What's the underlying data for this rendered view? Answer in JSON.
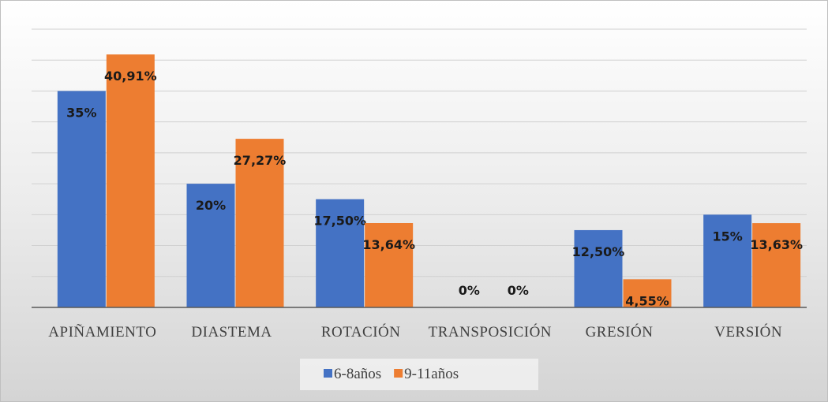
{
  "chart_data": {
    "type": "bar",
    "categories": [
      "APIÑAMIENTO",
      "DIASTEMA",
      "ROTACIÓN",
      "TRANSPOSICIÓN",
      "GRESIÓN",
      "VERSIÓN"
    ],
    "series": [
      {
        "name": "6-8años",
        "color": "#4472c4",
        "values": [
          35,
          20,
          17.5,
          0,
          12.5,
          15
        ],
        "value_labels": [
          "35%",
          "20%",
          "17,50%",
          "0%",
          "12,50%",
          "15%"
        ]
      },
      {
        "name": "9-11años",
        "color": "#ed7d31",
        "values": [
          40.91,
          27.27,
          13.64,
          0,
          4.55,
          13.63
        ],
        "value_labels": [
          "40,91%",
          "27,27%",
          "13,64%",
          "0%",
          "4,55%",
          "13,63%"
        ]
      }
    ],
    "ylim": [
      0,
      45
    ],
    "yticks": [
      0,
      5,
      10,
      15,
      20,
      25,
      30,
      35,
      40,
      45
    ],
    "grid": true,
    "legend": "bottom"
  }
}
